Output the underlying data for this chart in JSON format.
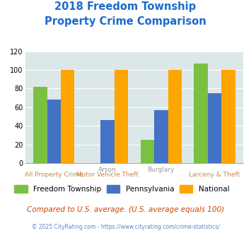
{
  "title_line1": "2018 Freedom Township",
  "title_line2": "Property Crime Comparison",
  "freedom_township": [
    82,
    0,
    25,
    107
  ],
  "pennsylvania": [
    68,
    46,
    57,
    75
  ],
  "national": [
    100,
    100,
    100,
    100
  ],
  "colors": {
    "freedom": "#7cc043",
    "pennsylvania": "#4472c4",
    "national": "#ffa500",
    "background": "#dce8e8",
    "title": "#1a6bcc"
  },
  "ylim": [
    0,
    120
  ],
  "yticks": [
    0,
    20,
    40,
    60,
    80,
    100,
    120
  ],
  "legend_labels": [
    "Freedom Township",
    "Pennsylvania",
    "National"
  ],
  "top_labels": {
    "1": "Arson",
    "2": "Burglary"
  },
  "bottom_labels": {
    "0": "All Property Crime",
    "1": "Motor Vehicle Theft",
    "3": "Larceny & Theft"
  },
  "note": "Compared to U.S. average. (U.S. average equals 100)",
  "copyright": "© 2025 CityRating.com - https://www.cityrating.com/crime-statistics/"
}
